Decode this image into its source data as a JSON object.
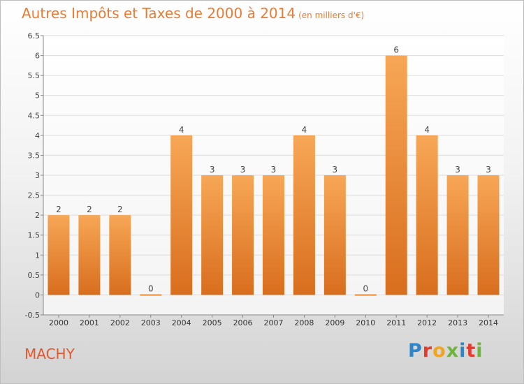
{
  "header": {
    "title": "Autres Impôts et Taxes de 2000 à 2014",
    "unit": "(en milliers d'€)"
  },
  "footer": {
    "commune": "MACHY",
    "brand_letters": [
      "P",
      "r",
      "o",
      "x",
      "i",
      "t",
      "i"
    ],
    "brand_colors": [
      "#2e86c8",
      "#e53b2d",
      "#f2a41c",
      "#6fb43f",
      "#2e86c8",
      "#e53b2d",
      "#6fb43f"
    ]
  },
  "chart_data": {
    "type": "bar",
    "categories": [
      "2000",
      "2001",
      "2002",
      "2003",
      "2004",
      "2005",
      "2006",
      "2007",
      "2008",
      "2009",
      "2010",
      "2011",
      "2012",
      "2013",
      "2014"
    ],
    "values": [
      2,
      2,
      2,
      0,
      4,
      3,
      3,
      3,
      4,
      3,
      0,
      6,
      4,
      3,
      3
    ],
    "data_labels": [
      "2",
      "2",
      "2",
      "0",
      "4",
      "3",
      "3",
      "3",
      "4",
      "3",
      "0",
      "6",
      "4",
      "3",
      "3"
    ],
    "ylim": [
      -0.5,
      6.5
    ],
    "yticks": [
      -0.5,
      0,
      0.5,
      1,
      1.5,
      2,
      2.5,
      3,
      3.5,
      4,
      4.5,
      5,
      5.5,
      6,
      6.5
    ],
    "ytick_labels": [
      "-0.5",
      "0",
      "0.5",
      "1",
      "1.5",
      "2",
      "2.5",
      "3",
      "3.5",
      "4",
      "4.5",
      "5",
      "5.5",
      "6",
      "6.5"
    ],
    "grid": true,
    "colors": {
      "bar_top": "#f7a756",
      "bar_bottom": "#d86e1e",
      "grid": "#dcdcdc",
      "axis": "#888888"
    }
  }
}
